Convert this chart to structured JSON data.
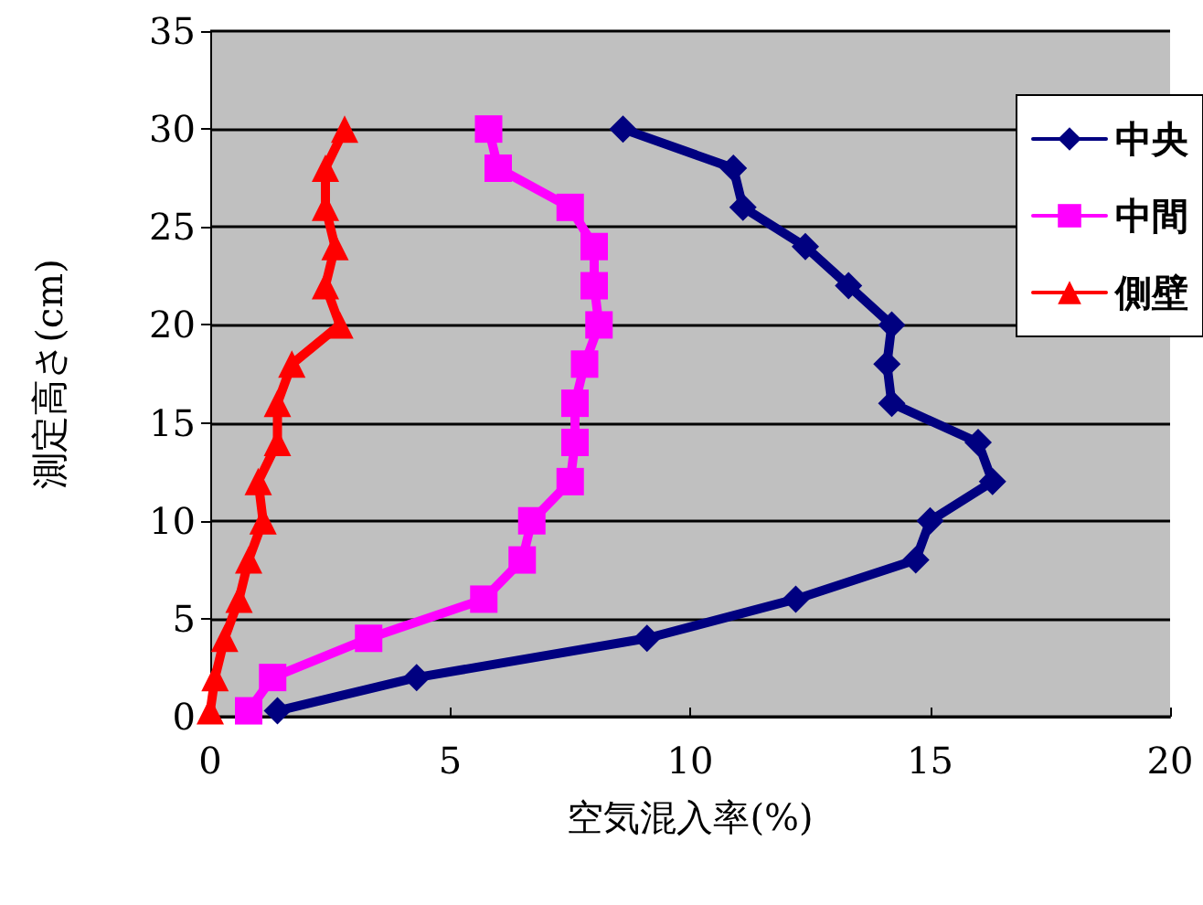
{
  "chart_data": {
    "type": "line",
    "xlabel": "空気混入率(%)",
    "ylabel": "測定高さ(cm)",
    "xlim": [
      0,
      20
    ],
    "xticks": [
      0,
      5,
      10,
      15,
      20
    ],
    "ylim": [
      0,
      35
    ],
    "yticks": [
      0,
      5,
      10,
      15,
      20,
      25,
      30,
      35
    ],
    "grid": "y",
    "legend": "top right",
    "line_style": "solid",
    "series": [
      {
        "name": "中央",
        "color": "#000080",
        "marker": "diamond",
        "x": [
          1.4,
          4.3,
          9.1,
          12.2,
          14.7,
          15.0,
          16.3,
          16.0,
          14.2,
          14.1,
          14.2,
          13.3,
          12.4,
          11.1,
          10.9,
          8.6
        ],
        "values": [
          0.3,
          2,
          4,
          6,
          8,
          10,
          12,
          14,
          16,
          18,
          20,
          22,
          24,
          26,
          28,
          30
        ]
      },
      {
        "name": "中間",
        "color": "#ff00ff",
        "marker": "square",
        "x": [
          0.8,
          1.3,
          3.3,
          5.7,
          6.5,
          6.7,
          7.5,
          7.6,
          7.6,
          7.8,
          8.1,
          8.0,
          8.0,
          7.5,
          6.0,
          5.8
        ],
        "values": [
          0.3,
          2,
          4,
          6,
          8,
          10,
          12,
          14,
          16,
          18,
          20,
          22,
          24,
          26,
          28,
          30
        ]
      },
      {
        "name": "側壁",
        "color": "#ff0000",
        "marker": "triangle",
        "x": [
          0.0,
          0.1,
          0.3,
          0.6,
          0.8,
          1.1,
          1.0,
          1.4,
          1.4,
          1.7,
          2.7,
          2.4,
          2.6,
          2.4,
          2.4,
          2.8
        ],
        "values": [
          0.3,
          2,
          4,
          6,
          8,
          10,
          12,
          14,
          16,
          18,
          20,
          22,
          24,
          26,
          28,
          30
        ]
      }
    ]
  }
}
